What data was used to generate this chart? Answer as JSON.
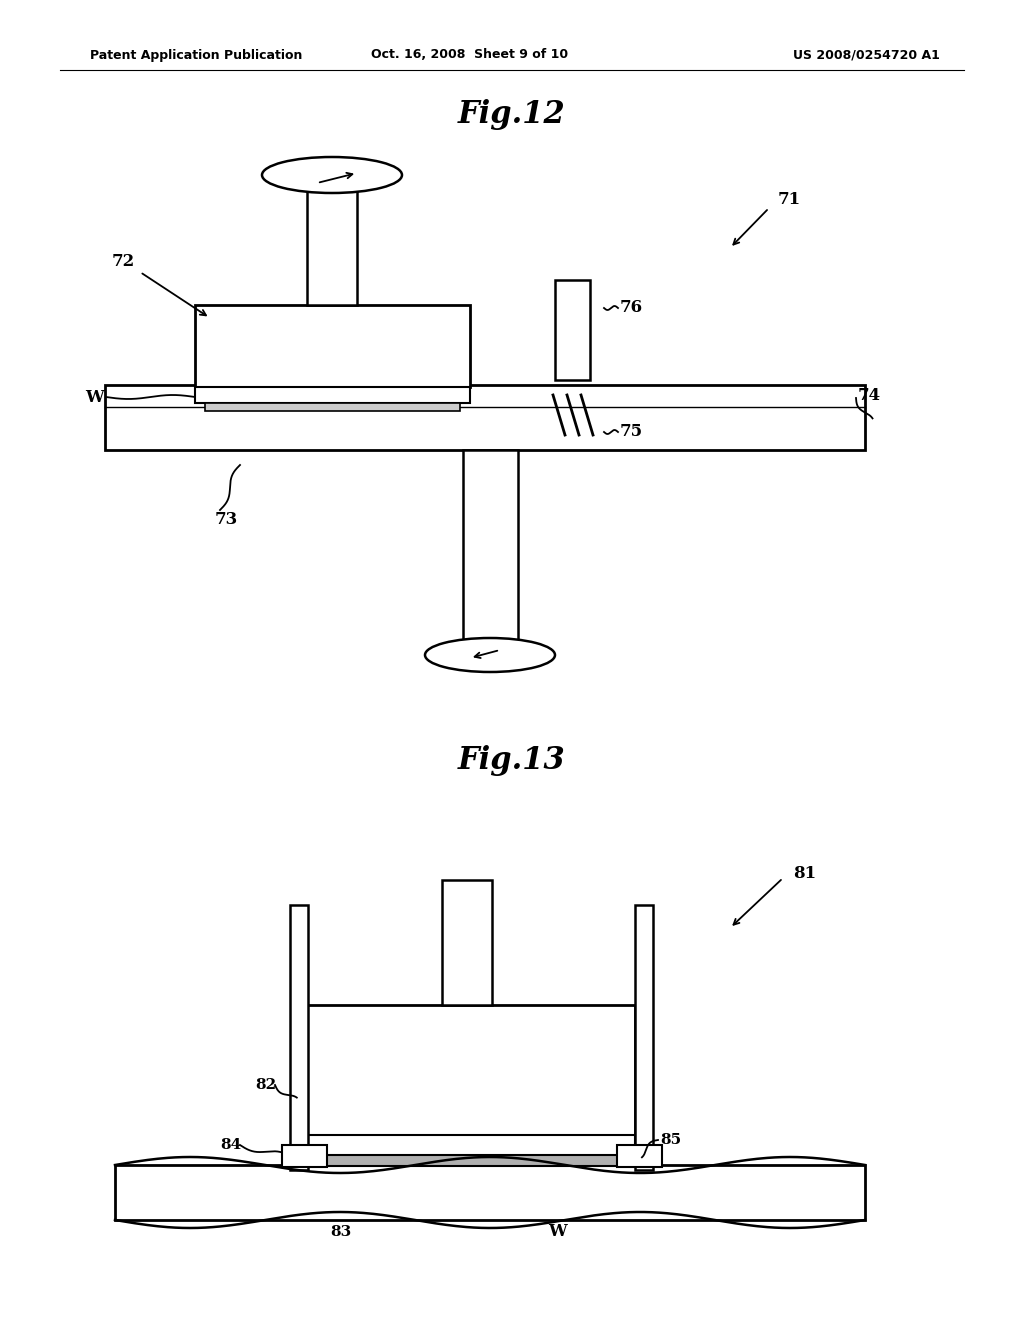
{
  "background_color": "#ffffff",
  "header_left": "Patent Application Publication",
  "header_mid": "Oct. 16, 2008  Sheet 9 of 10",
  "header_right": "US 2008/0254720 A1",
  "fig12_title": "Fig.12",
  "fig13_title": "Fig.13"
}
